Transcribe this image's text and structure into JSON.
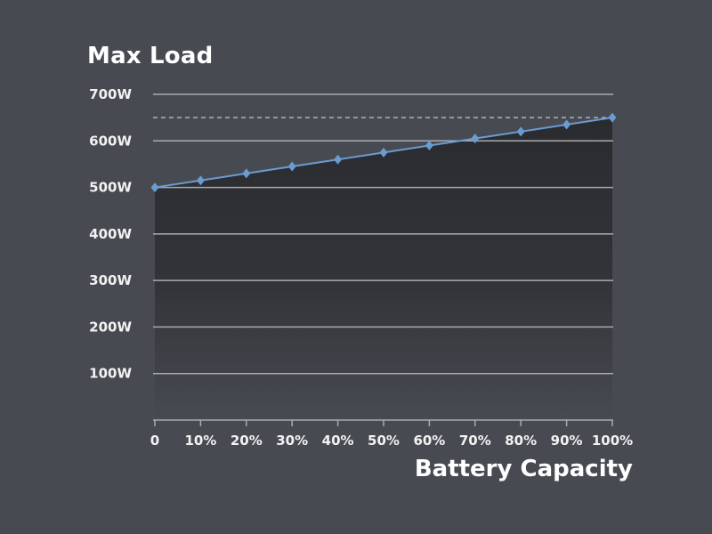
{
  "chart_data": {
    "type": "area",
    "title": "Max Load",
    "xlabel": "Battery Capacity",
    "ylabel": "",
    "x": [
      0,
      10,
      20,
      30,
      40,
      50,
      60,
      70,
      80,
      90,
      100
    ],
    "x_tick_labels": [
      "0",
      "10%",
      "20%",
      "30%",
      "40%",
      "50%",
      "60%",
      "70%",
      "80%",
      "90%",
      "100%"
    ],
    "xlim": [
      0,
      100
    ],
    "y_ticks": [
      100,
      200,
      300,
      400,
      500,
      600,
      700
    ],
    "y_tick_labels": [
      "100W",
      "200W",
      "300W",
      "400W",
      "500W",
      "600W",
      "700W"
    ],
    "ylim": [
      0,
      700
    ],
    "series": [
      {
        "values": [
          500,
          515,
          530,
          545,
          560,
          575,
          590,
          605,
          620,
          635,
          650
        ],
        "color": "#6a9bd1",
        "marker": "diamond"
      }
    ],
    "reference_line": {
      "y": 650,
      "style": "dashed"
    },
    "grid": true,
    "legend": "none",
    "colors": {
      "background": "#474a51",
      "area_fill": "#2c2d31",
      "gridline": "#a9abae",
      "line": "#6a9bd1"
    }
  }
}
